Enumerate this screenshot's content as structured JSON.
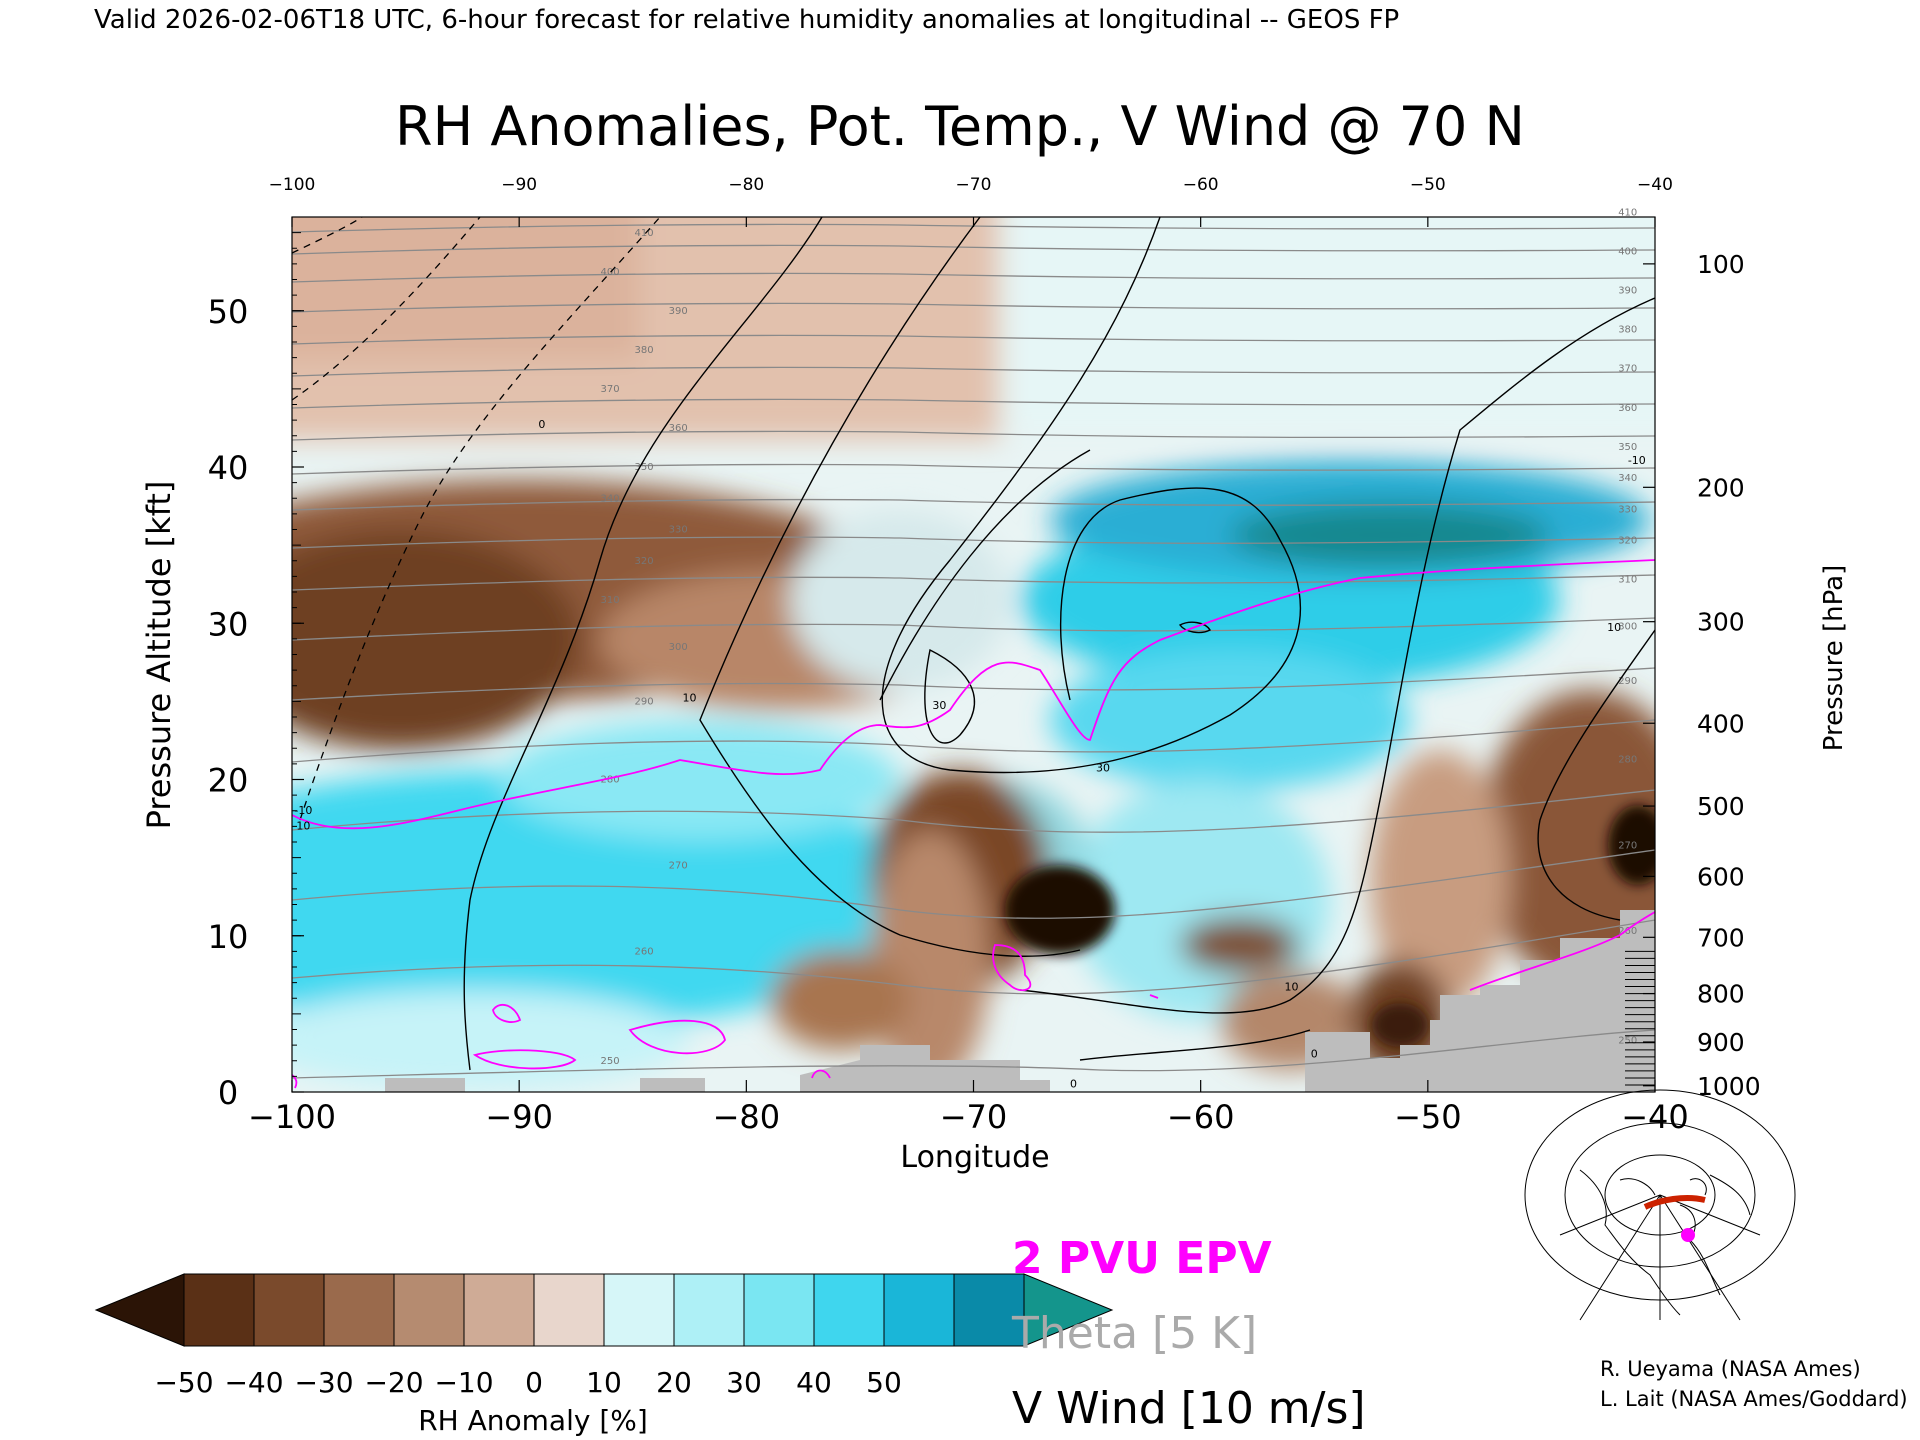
{
  "header": {
    "valid_line": "Valid 2026-02-06T18 UTC, 6-hour forecast for relative humidity anomalies at longitudinal -- GEOS FP"
  },
  "chart_data": {
    "type": "heatmap",
    "title": "RH Anomalies, Pot. Temp., V Wind @ 70 N",
    "xlabel": "Longitude",
    "ylabel_left": "Pressure Altitude [kft]",
    "ylabel_right": "Pressure [hPa]",
    "xlim": [
      -100,
      -40
    ],
    "ylim": [
      0,
      56
    ],
    "x_ticks": [
      "-100",
      "-90",
      "-80",
      "-70",
      "-60",
      "-50",
      "-40"
    ],
    "x_tick_values": [
      -100,
      -90,
      -80,
      -70,
      -60,
      -50,
      -40
    ],
    "y_ticks": [
      "0",
      "10",
      "20",
      "30",
      "40",
      "50"
    ],
    "y_tick_values": [
      0,
      10,
      20,
      30,
      40,
      50
    ],
    "pressure_ticks": [
      {
        "label": "100",
        "kft": 53.0
      },
      {
        "label": "200",
        "kft": 38.7
      },
      {
        "label": "300",
        "kft": 30.1
      },
      {
        "label": "400",
        "kft": 23.6
      },
      {
        "label": "500",
        "kft": 18.3
      },
      {
        "label": "600",
        "kft": 13.8
      },
      {
        "label": "700",
        "kft": 9.9
      },
      {
        "label": "800",
        "kft": 6.3
      },
      {
        "label": "900",
        "kft": 3.2
      },
      {
        "label": "1000",
        "kft": 0.4
      }
    ],
    "colorbar": {
      "label": "RH Anomaly [%]",
      "ticks": [
        "-50",
        "-40",
        "-30",
        "-20",
        "-10",
        "0",
        "10",
        "20",
        "30",
        "40",
        "50"
      ],
      "colors": [
        "#2b1406",
        "#5a3016",
        "#7a4a2c",
        "#9a6a4c",
        "#b58b70",
        "#cfab96",
        "#e8d6cc",
        "#d6f6f8",
        "#aef0f6",
        "#7ae6f2",
        "#3fd6ee",
        "#1ab6d8",
        "#0a8aa8",
        "#14958c"
      ]
    },
    "theta_levels": [
      {
        "label": "250",
        "kft": 1.5
      },
      {
        "label": "260",
        "kft": 8.5
      },
      {
        "label": "270",
        "kft": 14.0
      },
      {
        "label": "280",
        "kft": 19.5
      },
      {
        "label": "290",
        "kft": 24.5
      },
      {
        "label": "300",
        "kft": 28.0
      },
      {
        "label": "310",
        "kft": 31.0
      },
      {
        "label": "320",
        "kft": 33.5
      },
      {
        "label": "330",
        "kft": 35.5
      },
      {
        "label": "340",
        "kft": 37.5
      },
      {
        "label": "350",
        "kft": 39.5
      },
      {
        "label": "360",
        "kft": 42.0
      },
      {
        "label": "370",
        "kft": 44.5
      },
      {
        "label": "380",
        "kft": 47.0
      },
      {
        "label": "390",
        "kft": 49.5
      },
      {
        "label": "400",
        "kft": 52.0
      },
      {
        "label": "410",
        "kft": 54.5
      }
    ],
    "wind_labels": [
      "0",
      "10",
      "30",
      "30",
      "10",
      "0",
      "10",
      "0",
      "-10",
      "-10",
      "10"
    ],
    "epv_label": "2 PVU EPV",
    "theta_label": "Theta [5 K]",
    "vwind_label": "V Wind [10 m/s]",
    "colors": {
      "epv": "#ff00ff",
      "theta": "#999999",
      "wind": "#000000",
      "terrain": "#bdbdbd"
    }
  },
  "credits": {
    "line1": "R. Ueyama (NASA Ames)",
    "line2": "L. Lait (NASA Ames/Goddard)"
  },
  "map_inset": {
    "icon": "globe-map-icon"
  }
}
